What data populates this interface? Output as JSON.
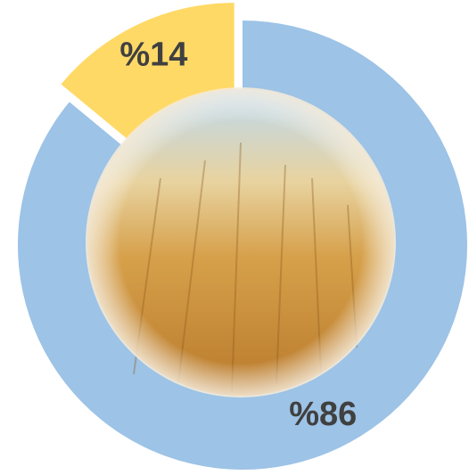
{
  "chart_data": {
    "type": "pie",
    "values": [
      86,
      14
    ],
    "value_labels": [
      "%86",
      "%14"
    ],
    "colors": [
      "#9dc3e6",
      "#ffd966"
    ]
  }
}
